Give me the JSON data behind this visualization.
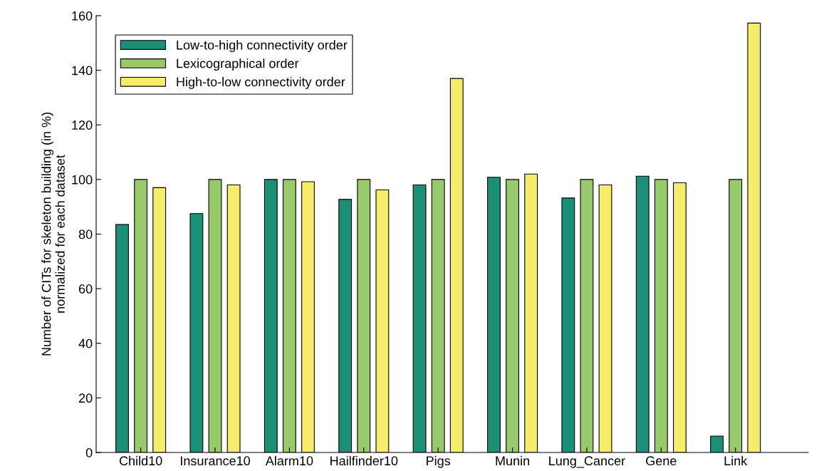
{
  "chart_data": {
    "type": "bar",
    "ylabel": "Number of CITs for skeleton building (in %)\nnormalized for each dataset",
    "categories": [
      "Child10",
      "Insurance10",
      "Alarm10",
      "Hailfinder10",
      "Pigs",
      "Munin",
      "Lung_Cancer",
      "Gene",
      "Link"
    ],
    "series": [
      {
        "name": "Low-to-high connectivity order",
        "color": "#1a9177",
        "values": [
          83.5,
          87.5,
          100,
          92.7,
          98,
          100.8,
          93.2,
          101.2,
          6
        ]
      },
      {
        "name": "Lexicographical order",
        "color": "#98c96a",
        "values": [
          100,
          100,
          100,
          100,
          100,
          100,
          100,
          100,
          100
        ]
      },
      {
        "name": "High-to-low connectivity order",
        "color": "#f5ec6a",
        "values": [
          97,
          98,
          99.2,
          96.2,
          137,
          102,
          98,
          98.8,
          157.3
        ]
      }
    ],
    "ylim": [
      0,
      160
    ],
    "yticks": [
      0,
      20,
      40,
      60,
      80,
      100,
      120,
      140,
      160
    ],
    "grid": false,
    "legend": "top left"
  }
}
